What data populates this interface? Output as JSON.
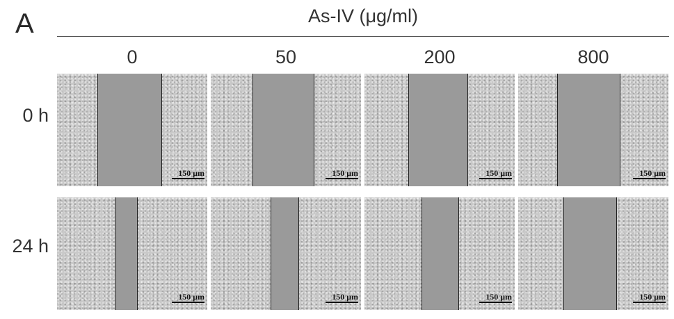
{
  "figure": {
    "panel_letter": "A",
    "treatment_label": "As-IV (μg/ml)",
    "columns": [
      "0",
      "50",
      "200",
      "800"
    ],
    "rows": [
      {
        "label": "0 h",
        "images": [
          {
            "scale_label": "150 μm",
            "wound_edges": [
              0.27,
              0.69
            ]
          },
          {
            "scale_label": "150 μm",
            "wound_edges": [
              0.28,
              0.68
            ]
          },
          {
            "scale_label": "150 μm",
            "wound_edges": [
              0.29,
              0.68
            ]
          },
          {
            "scale_label": "150 μm",
            "wound_edges": [
              0.26,
              0.67
            ]
          }
        ]
      },
      {
        "label": "24 h",
        "images": [
          {
            "scale_label": "150 μm",
            "wound_edges": [
              0.39,
              0.53
            ]
          },
          {
            "scale_label": "150 μm",
            "wound_edges": [
              0.4,
              0.58
            ]
          },
          {
            "scale_label": "150 μm",
            "wound_edges": [
              0.38,
              0.62
            ]
          },
          {
            "scale_label": "150 μm",
            "wound_edges": [
              0.3,
              0.65
            ]
          }
        ]
      }
    ]
  }
}
